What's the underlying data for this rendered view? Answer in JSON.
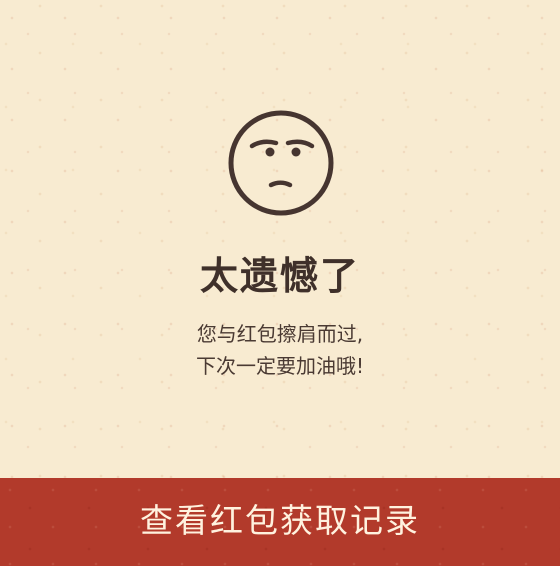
{
  "icon": {
    "name": "disappointed-face-icon"
  },
  "result": {
    "title": "太遗憾了",
    "message_line1": "您与红包擦肩而过,",
    "message_line2": "下次一定要加油哦!"
  },
  "footer": {
    "button_label": "查看红包获取记录"
  },
  "colors": {
    "background": "#f8ebd1",
    "text_dark": "#3f302a",
    "footer_red": "#b23a2b",
    "footer_text": "#fff2df"
  }
}
